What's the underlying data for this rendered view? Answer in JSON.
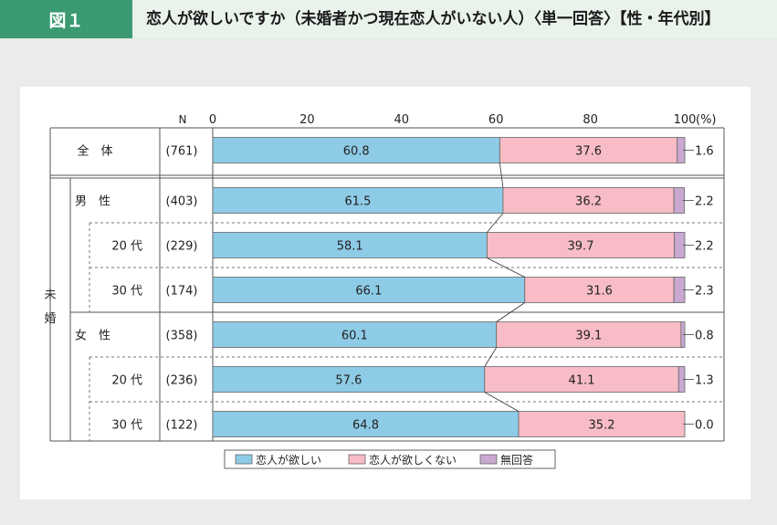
{
  "header": {
    "figure_label": "図１",
    "title": "恋人が欲しいですか（未婚者かつ現在恋人がいない人）〈単一回答〉【性・年代別】"
  },
  "chart_data": {
    "type": "bar",
    "orientation": "horizontal",
    "stacked": true,
    "n_label": "N",
    "unit_label": "(%)",
    "xlim": [
      0,
      100
    ],
    "x_ticks": [
      "0",
      "20",
      "40",
      "60",
      "80",
      "100"
    ],
    "categories": [
      {
        "group": "全　体",
        "label": "",
        "n": "(761)"
      },
      {
        "group": "未婚",
        "label": "男　性",
        "n": "(403)"
      },
      {
        "group": "未婚",
        "label": "20 代",
        "n": "(229)"
      },
      {
        "group": "未婚",
        "label": "30 代",
        "n": "(174)"
      },
      {
        "group": "未婚",
        "label": "女　性",
        "n": "(358)"
      },
      {
        "group": "未婚",
        "label": "20 代",
        "n": "(236)"
      },
      {
        "group": "未婚",
        "label": "30 代",
        "n": "(122)"
      }
    ],
    "row_labels": [
      "全　体",
      "男　性",
      "20 代",
      "30 代",
      "女　性",
      "20 代",
      "30 代"
    ],
    "side_label": [
      "未",
      "婚"
    ],
    "series": [
      {
        "name": "恋人が欲しい",
        "color": "#8ecbe6",
        "values": [
          60.8,
          61.5,
          58.1,
          66.1,
          60.1,
          57.6,
          64.8
        ]
      },
      {
        "name": "恋人が欲しくない",
        "color": "#f7bcc5",
        "values": [
          37.6,
          36.2,
          39.7,
          31.6,
          39.1,
          41.1,
          35.2
        ]
      },
      {
        "name": "無回答",
        "color": "#c9a8d1",
        "values": [
          1.6,
          2.2,
          2.2,
          2.3,
          0.8,
          1.3,
          0.0
        ]
      }
    ],
    "value_labels": {
      "s0": [
        "60.8",
        "61.5",
        "58.1",
        "66.1",
        "60.1",
        "57.6",
        "64.8"
      ],
      "s1": [
        "37.6",
        "36.2",
        "39.7",
        "31.6",
        "39.1",
        "41.1",
        "35.2"
      ],
      "s2": [
        "1.6",
        "2.2",
        "2.2",
        "2.3",
        "0.8",
        "1.3",
        "0.0"
      ]
    },
    "legend_position": "bottom"
  }
}
